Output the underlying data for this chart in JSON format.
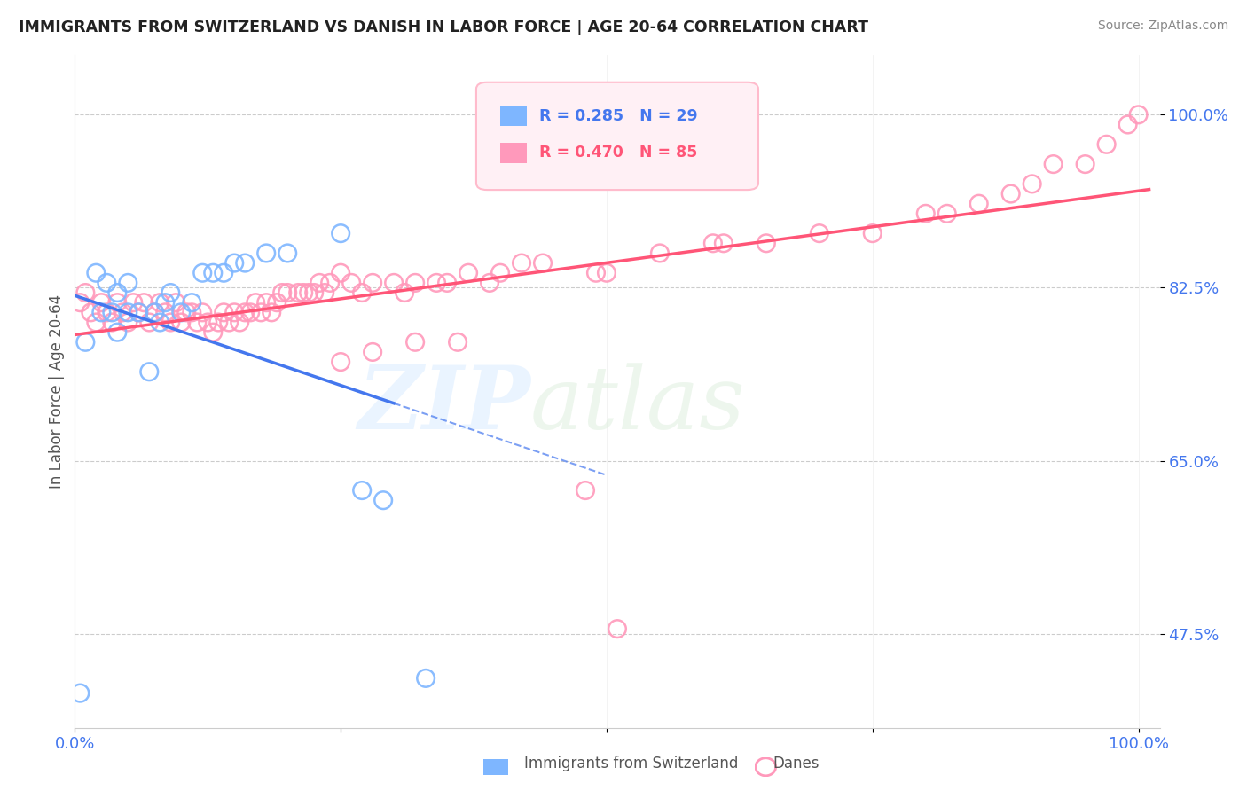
{
  "title": "IMMIGRANTS FROM SWITZERLAND VS DANISH IN LABOR FORCE | AGE 20-64 CORRELATION CHART",
  "source": "Source: ZipAtlas.com",
  "ylabel": "In Labor Force | Age 20-64",
  "xlim": [
    0.0,
    1.02
  ],
  "ylim": [
    0.38,
    1.06
  ],
  "yticks": [
    0.475,
    0.65,
    0.825,
    1.0
  ],
  "ytick_labels": [
    "47.5%",
    "65.0%",
    "82.5%",
    "100.0%"
  ],
  "xticks": [
    0.0,
    0.25,
    0.5,
    0.75,
    1.0
  ],
  "xtick_labels": [
    "0.0%",
    "",
    "",
    "",
    "100.0%"
  ],
  "swiss_color": "#7EB6FF",
  "danish_color": "#FF99BB",
  "swiss_trend_color": "#4477EE",
  "danish_trend_color": "#FF5577",
  "swiss_R": 0.285,
  "swiss_N": 29,
  "danish_R": 0.47,
  "danish_N": 85,
  "swiss_scatter_x": [
    0.005,
    0.01,
    0.02,
    0.025,
    0.03,
    0.035,
    0.04,
    0.04,
    0.05,
    0.05,
    0.06,
    0.07,
    0.075,
    0.08,
    0.085,
    0.09,
    0.1,
    0.11,
    0.12,
    0.13,
    0.14,
    0.15,
    0.16,
    0.18,
    0.2,
    0.25,
    0.27,
    0.29,
    0.33
  ],
  "swiss_scatter_y": [
    0.415,
    0.77,
    0.84,
    0.8,
    0.83,
    0.8,
    0.78,
    0.82,
    0.83,
    0.8,
    0.8,
    0.74,
    0.8,
    0.79,
    0.81,
    0.82,
    0.8,
    0.81,
    0.84,
    0.84,
    0.84,
    0.85,
    0.85,
    0.86,
    0.86,
    0.88,
    0.62,
    0.61,
    0.43
  ],
  "danish_scatter_x": [
    0.005,
    0.01,
    0.015,
    0.02,
    0.025,
    0.03,
    0.035,
    0.04,
    0.045,
    0.05,
    0.055,
    0.06,
    0.065,
    0.07,
    0.075,
    0.08,
    0.085,
    0.09,
    0.095,
    0.1,
    0.105,
    0.11,
    0.115,
    0.12,
    0.125,
    0.13,
    0.135,
    0.14,
    0.145,
    0.15,
    0.155,
    0.16,
    0.165,
    0.17,
    0.175,
    0.18,
    0.185,
    0.19,
    0.195,
    0.2,
    0.21,
    0.215,
    0.22,
    0.225,
    0.23,
    0.235,
    0.24,
    0.25,
    0.26,
    0.27,
    0.28,
    0.3,
    0.31,
    0.32,
    0.34,
    0.35,
    0.37,
    0.39,
    0.4,
    0.42,
    0.44,
    0.49,
    0.5,
    0.55,
    0.6,
    0.61,
    0.65,
    0.7,
    0.75,
    0.8,
    0.82,
    0.85,
    0.88,
    0.9,
    0.92,
    0.95,
    0.97,
    0.99,
    1.0,
    0.25,
    0.28,
    0.32,
    0.36,
    0.48,
    0.51
  ],
  "danish_scatter_y": [
    0.81,
    0.82,
    0.8,
    0.79,
    0.81,
    0.8,
    0.79,
    0.81,
    0.8,
    0.79,
    0.81,
    0.8,
    0.81,
    0.79,
    0.8,
    0.81,
    0.8,
    0.79,
    0.81,
    0.79,
    0.8,
    0.8,
    0.79,
    0.8,
    0.79,
    0.78,
    0.79,
    0.8,
    0.79,
    0.8,
    0.79,
    0.8,
    0.8,
    0.81,
    0.8,
    0.81,
    0.8,
    0.81,
    0.82,
    0.82,
    0.82,
    0.82,
    0.82,
    0.82,
    0.83,
    0.82,
    0.83,
    0.84,
    0.83,
    0.82,
    0.83,
    0.83,
    0.82,
    0.83,
    0.83,
    0.83,
    0.84,
    0.83,
    0.84,
    0.85,
    0.85,
    0.84,
    0.84,
    0.86,
    0.87,
    0.87,
    0.87,
    0.88,
    0.88,
    0.9,
    0.9,
    0.91,
    0.92,
    0.93,
    0.95,
    0.95,
    0.97,
    0.99,
    1.0,
    0.75,
    0.76,
    0.77,
    0.77,
    0.62,
    0.48
  ]
}
